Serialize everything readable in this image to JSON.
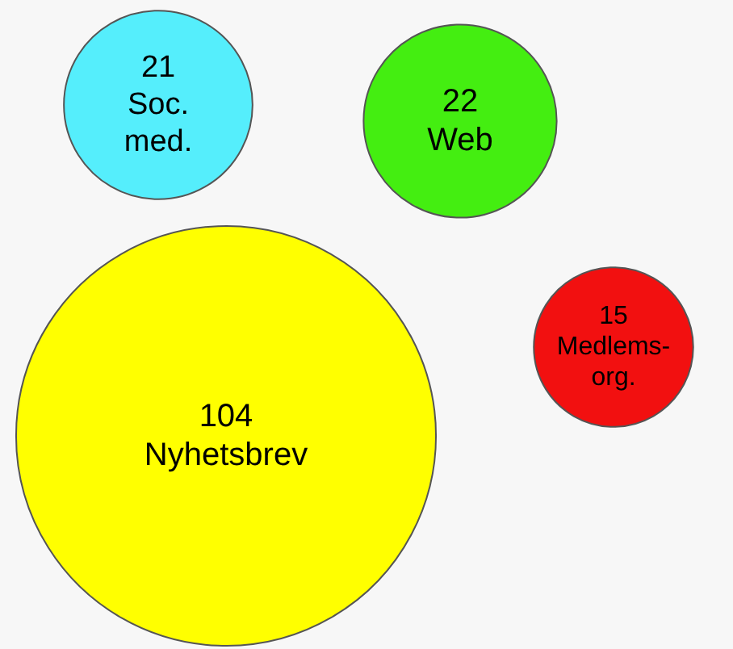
{
  "chart_data": {
    "type": "other",
    "categories": [
      "Soc.\nmed.",
      "Web",
      "Medlems-\norg.",
      "Nyhetsbrev"
    ],
    "values": [
      21,
      22,
      15,
      104
    ],
    "colors": [
      "#55eefc",
      "#44ee11",
      "#f21010",
      "#ffff00"
    ],
    "data_labels": true
  }
}
